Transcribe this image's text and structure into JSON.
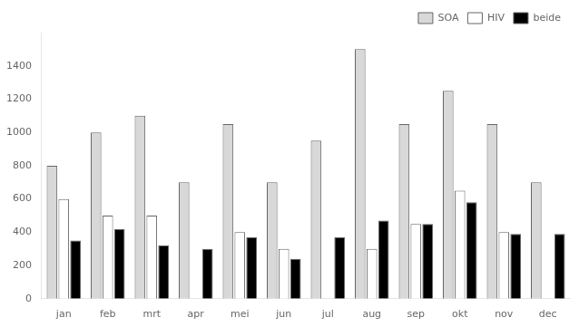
{
  "chart_data": {
    "type": "bar",
    "categories": [
      "jan",
      "feb",
      "mrt",
      "apr",
      "mei",
      "jun",
      "jul",
      "aug",
      "sep",
      "okt",
      "nov",
      "dec"
    ],
    "series": [
      {
        "name": "SOA",
        "color": "#d8d8d8",
        "values": [
          800,
          1000,
          1100,
          700,
          1050,
          700,
          950,
          1500,
          1050,
          1250,
          1050,
          700
        ]
      },
      {
        "name": "HIV",
        "color": "#ffffff",
        "values": [
          600,
          500,
          500,
          0,
          400,
          300,
          0,
          300,
          450,
          650,
          400,
          0
        ]
      },
      {
        "name": "beide",
        "color": "#000000",
        "values": [
          350,
          420,
          320,
          300,
          370,
          240,
          370,
          470,
          450,
          580,
          390,
          390
        ]
      }
    ],
    "ylim": [
      0,
      1600
    ],
    "yticks": [
      0,
      200,
      400,
      600,
      800,
      1000,
      1200,
      1400
    ],
    "grid": false,
    "legend": "upper right"
  }
}
